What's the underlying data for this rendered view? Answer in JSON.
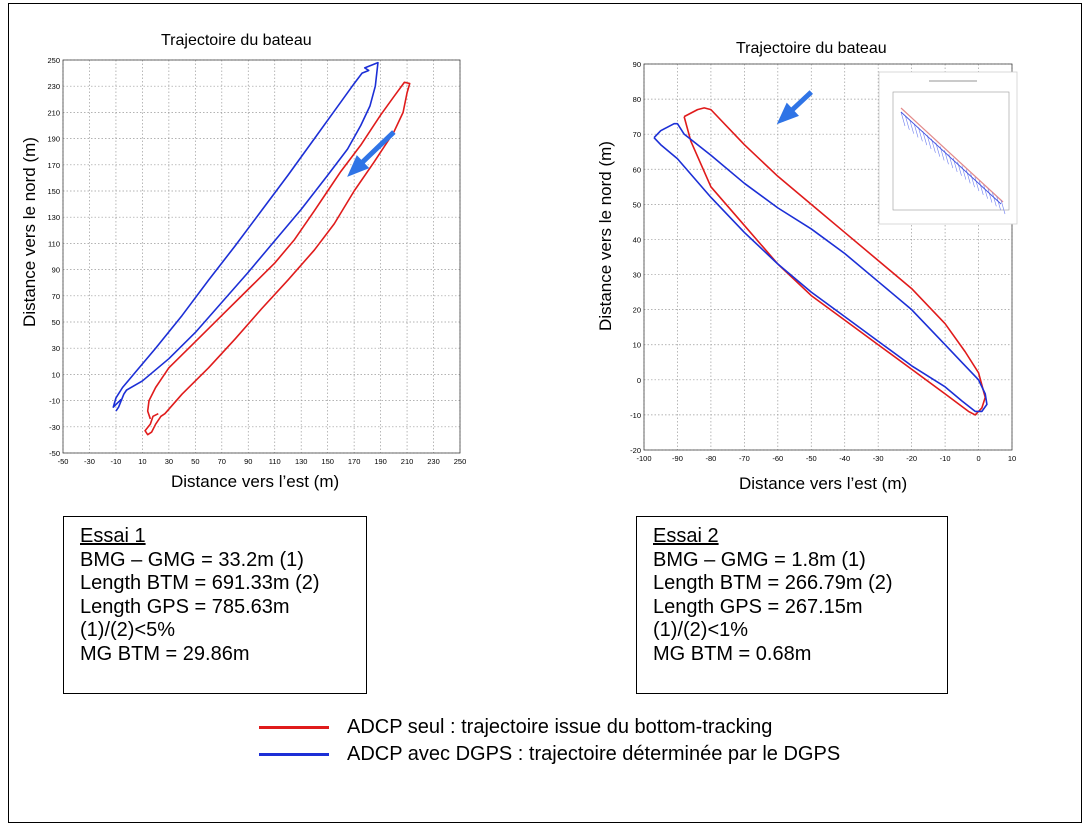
{
  "colors": {
    "red": "#e01b1b",
    "blue": "#1c2fd6",
    "arrow": "#2f74e6",
    "grid": "#9a9a9a"
  },
  "chart_data": [
    {
      "type": "line",
      "title": "Trajectoire du bateau",
      "xlabel": "Distance vers l’est (m)",
      "ylabel": "Distance vers le nord (m)",
      "xlim": [
        -50,
        250
      ],
      "ylim": [
        -50,
        250
      ],
      "xticks": [
        -50,
        -30,
        -10,
        10,
        30,
        50,
        70,
        90,
        110,
        130,
        150,
        170,
        190,
        210,
        230,
        250
      ],
      "yticks": [
        -50,
        -30,
        -10,
        10,
        30,
        50,
        70,
        90,
        110,
        130,
        150,
        170,
        190,
        210,
        230,
        250
      ],
      "grid": true,
      "series": [
        {
          "color": "red",
          "x": [
            22,
            18,
            16,
            12,
            14,
            17,
            20,
            24,
            27,
            40,
            60,
            80,
            100,
            120,
            140,
            155,
            170,
            185,
            200,
            207,
            210,
            212,
            208,
            200,
            190,
            175,
            160,
            150,
            140,
            125,
            110,
            90,
            70,
            50,
            30,
            20,
            15,
            14,
            16
          ],
          "y": [
            -20,
            -22,
            -28,
            -33,
            -36,
            -34,
            -28,
            -22,
            -20,
            -5,
            15,
            37,
            60,
            82,
            105,
            125,
            150,
            172,
            195,
            210,
            225,
            232,
            233,
            222,
            208,
            185,
            165,
            150,
            135,
            113,
            95,
            75,
            55,
            35,
            15,
            0,
            -10,
            -18,
            -24
          ]
        },
        {
          "color": "blue",
          "x": [
            -10,
            -8,
            -6,
            -4,
            -2,
            10,
            30,
            50,
            70,
            90,
            110,
            130,
            150,
            165,
            175,
            182,
            186,
            188,
            183,
            178,
            181,
            176,
            170,
            160,
            140,
            120,
            100,
            80,
            60,
            40,
            20,
            5,
            -5,
            -10,
            -12,
            -9,
            -6
          ],
          "y": [
            -18,
            -15,
            -10,
            -5,
            -2,
            5,
            22,
            42,
            65,
            88,
            112,
            136,
            162,
            182,
            200,
            215,
            230,
            248,
            246,
            244,
            242,
            240,
            232,
            218,
            190,
            162,
            135,
            108,
            82,
            55,
            30,
            12,
            0,
            -8,
            -15,
            -12,
            -9
          ]
        }
      ],
      "annotations": [
        {
          "type": "arrow",
          "from": [
            200,
            195
          ],
          "to": [
            168,
            164
          ]
        }
      ]
    },
    {
      "type": "line",
      "title": "Trajectoire du bateau",
      "xlabel": "Distance vers l’est (m)",
      "ylabel": "Distance vers le nord (m)",
      "xlim": [
        -100,
        10
      ],
      "ylim": [
        -20,
        90
      ],
      "xticks": [
        -100,
        -90,
        -80,
        -70,
        -60,
        -50,
        -40,
        -30,
        -20,
        -10,
        0,
        10
      ],
      "yticks": [
        -20,
        -10,
        0,
        10,
        20,
        30,
        40,
        50,
        60,
        70,
        80,
        90
      ],
      "grid": true,
      "series": [
        {
          "color": "red",
          "x": [
            -88,
            -86,
            -84,
            -82,
            -80,
            -70,
            -60,
            -50,
            -40,
            -30,
            -20,
            -10,
            -4,
            0,
            2,
            1,
            -1,
            -3,
            -10,
            -20,
            -30,
            -40,
            -50,
            -60,
            -70,
            -80,
            -86,
            -88
          ],
          "y": [
            75,
            76,
            77,
            77.5,
            77,
            67,
            58,
            50,
            42,
            34,
            26,
            16,
            8,
            2,
            -5,
            -8,
            -10,
            -9,
            -4,
            3,
            10,
            17,
            24,
            33,
            44,
            55,
            68,
            75
          ]
        },
        {
          "color": "blue",
          "x": [
            -97,
            -95,
            -93,
            -91,
            -90,
            -88,
            -80,
            -70,
            -60,
            -50,
            -40,
            -30,
            -20,
            -10,
            -5,
            0,
            2,
            2.5,
            1,
            -1,
            -5,
            -10,
            -20,
            -30,
            -40,
            -50,
            -60,
            -70,
            -80,
            -90,
            -95,
            -97
          ],
          "y": [
            69,
            71,
            72,
            73,
            73,
            70,
            64,
            56,
            49,
            43,
            36,
            28,
            20,
            10,
            5,
            0,
            -4,
            -7,
            -9,
            -9,
            -6,
            -2,
            4,
            11,
            18,
            25,
            33,
            42,
            52,
            63,
            67,
            69
          ]
        }
      ],
      "annotations": [
        {
          "type": "arrow",
          "from": [
            -50,
            82
          ],
          "to": [
            -59,
            74
          ]
        }
      ],
      "inset": {
        "description_visible": false
      }
    }
  ],
  "trial1": {
    "title": "Essai 1",
    "lines": [
      "BMG – GMG = 33.2m (1)",
      "Length BTM = 691.33m (2)",
      "Length GPS = 785.63m",
      "(1)/(2)<5%",
      "MG BTM = 29.86m"
    ]
  },
  "trial2": {
    "title": "Essai 2",
    "lines": [
      "BMG – GMG = 1.8m (1)",
      "Length BTM = 266.79m (2)",
      "Length GPS = 267.15m",
      "(1)/(2)<1%",
      "MG BTM = 0.68m"
    ]
  },
  "legend": {
    "items": [
      {
        "color": "red",
        "label": "ADCP seul : trajectoire issue du bottom-tracking"
      },
      {
        "color": "blue",
        "label": "ADCP avec DGPS : trajectoire déterminée par le DGPS"
      }
    ]
  }
}
